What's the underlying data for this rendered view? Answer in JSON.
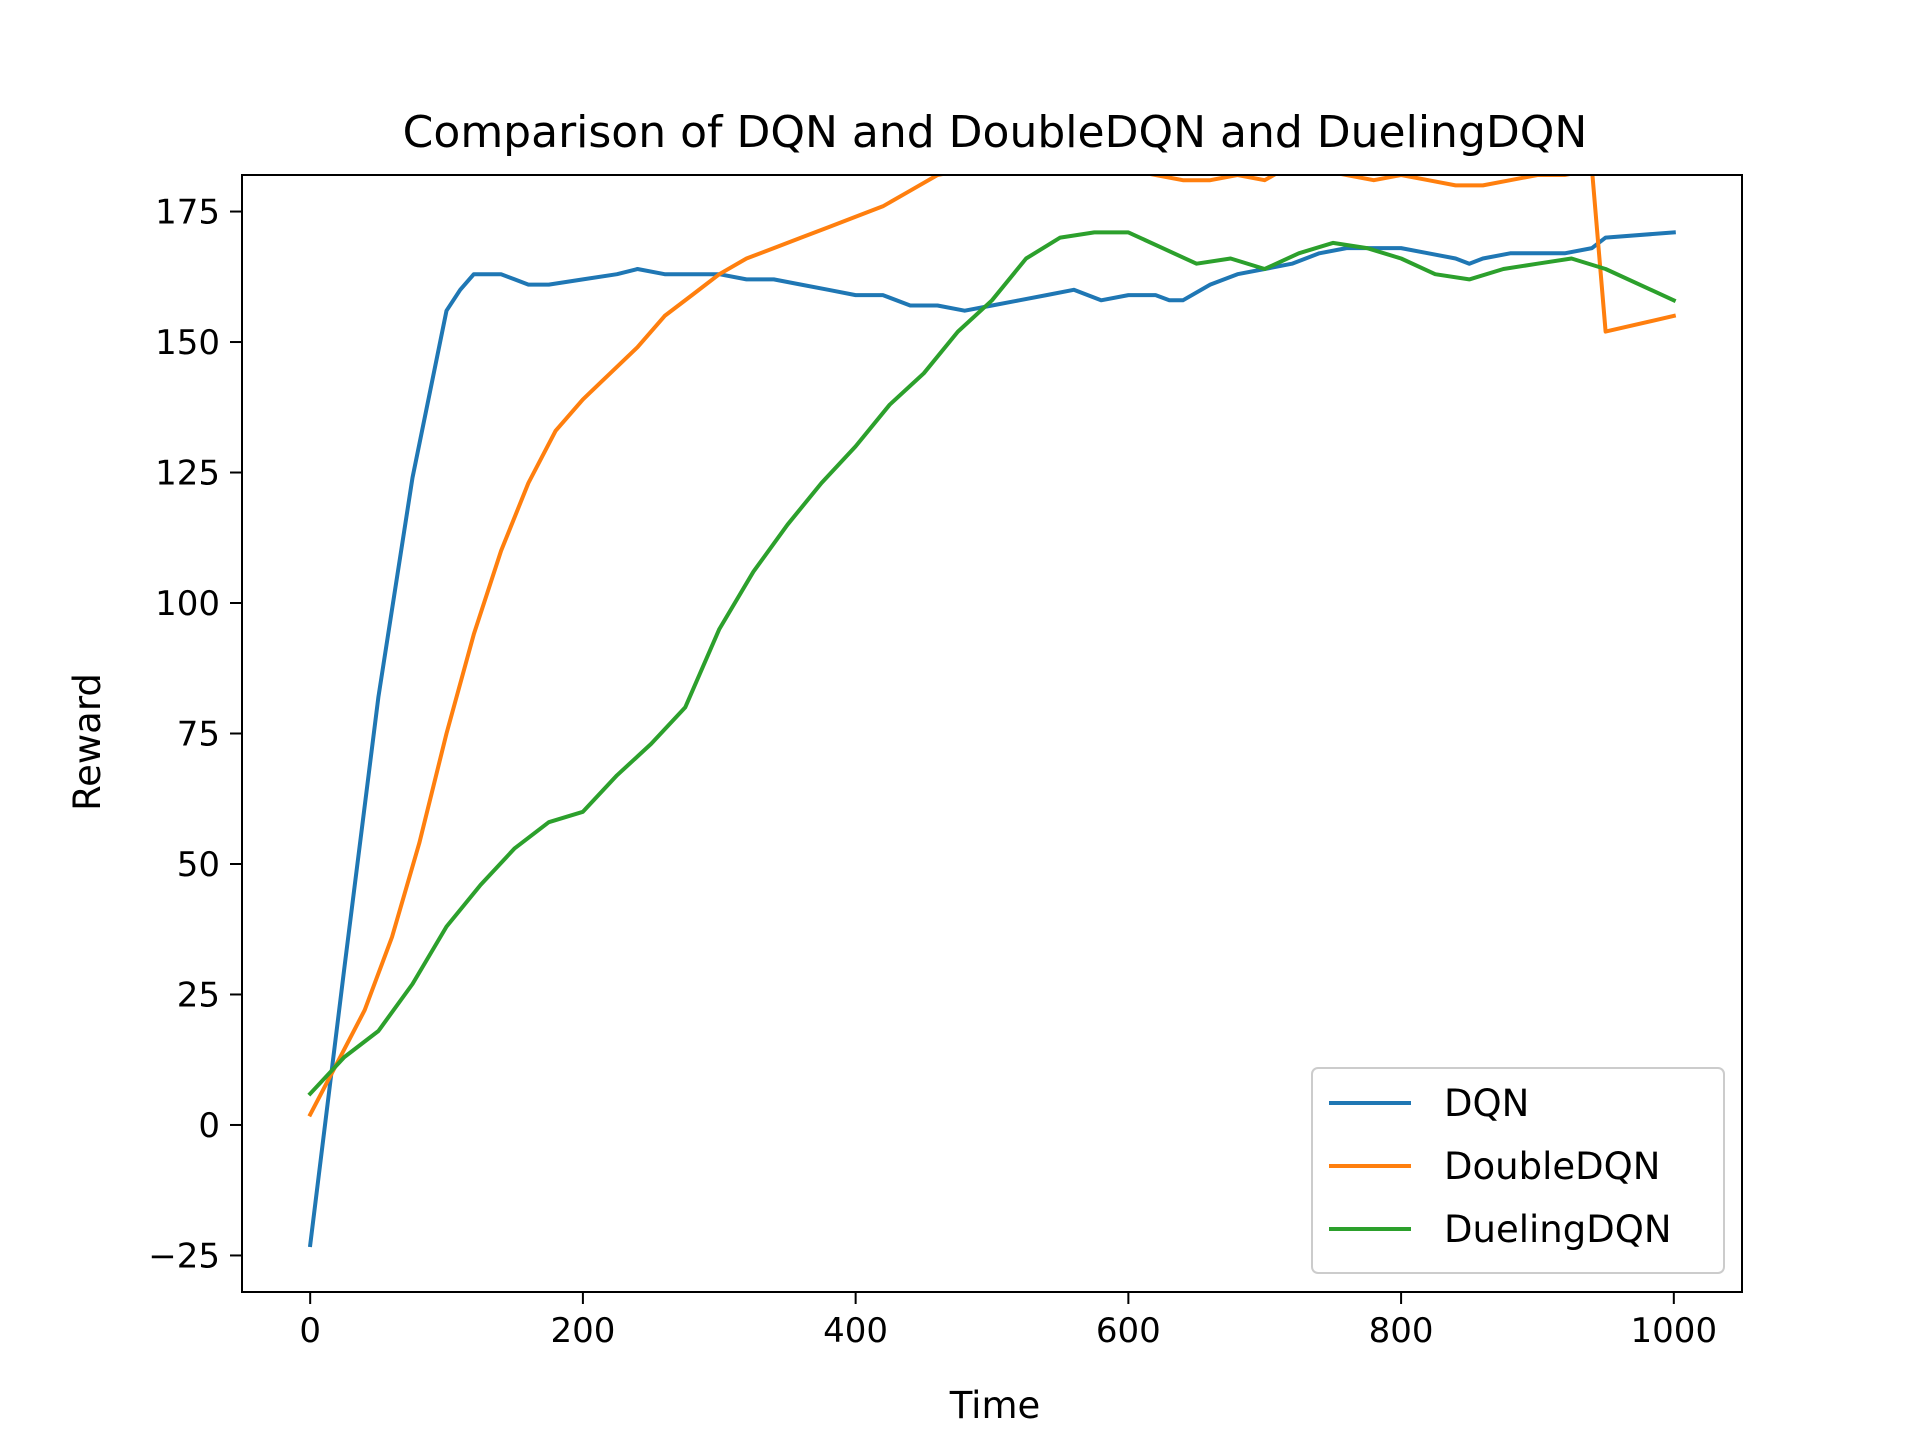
{
  "chart_data": {
    "type": "line",
    "title": "Comparison of DQN and DoubleDQN and DuelingDQN",
    "xlabel": "Time",
    "ylabel": "Reward",
    "xlim": [
      -50,
      1050
    ],
    "ylim": [
      -32,
      182
    ],
    "xticks": [
      0,
      200,
      400,
      600,
      800,
      1000
    ],
    "yticks": [
      -25,
      0,
      25,
      50,
      75,
      100,
      125,
      150,
      175
    ],
    "xtick_labels": [
      "0",
      "200",
      "400",
      "600",
      "800",
      "1000"
    ],
    "ytick_labels": [
      "−25",
      "0",
      "25",
      "50",
      "75",
      "100",
      "125",
      "150",
      "175"
    ],
    "grid": false,
    "legend_position": "lower right",
    "series": [
      {
        "name": "DQN",
        "color": "#1f77b4",
        "x": [
          0,
          25,
          50,
          75,
          100,
          110,
          120,
          130,
          140,
          150,
          160,
          175,
          200,
          225,
          240,
          260,
          280,
          300,
          320,
          340,
          360,
          380,
          400,
          420,
          440,
          460,
          480,
          500,
          520,
          540,
          560,
          580,
          600,
          620,
          630,
          640,
          660,
          680,
          700,
          720,
          740,
          760,
          780,
          800,
          820,
          840,
          850,
          860,
          880,
          900,
          920,
          940,
          950,
          1000
        ],
        "y": [
          -23,
          30,
          82,
          124,
          156,
          160,
          163,
          163,
          163,
          162,
          161,
          161,
          162,
          163,
          164,
          163,
          163,
          163,
          162,
          162,
          161,
          160,
          159,
          159,
          157,
          157,
          156,
          157,
          158,
          159,
          160,
          158,
          159,
          159,
          158,
          158,
          161,
          163,
          164,
          165,
          167,
          168,
          168,
          168,
          167,
          166,
          165,
          166,
          167,
          167,
          167,
          168,
          170,
          171
        ]
      },
      {
        "name": "DoubleDQN",
        "color": "#ff7f0e",
        "x": [
          0,
          20,
          40,
          60,
          80,
          100,
          120,
          140,
          160,
          180,
          200,
          220,
          240,
          260,
          280,
          300,
          320,
          340,
          360,
          380,
          400,
          420,
          440,
          460,
          480,
          500,
          520,
          540,
          560,
          580,
          600,
          620,
          640,
          660,
          680,
          700,
          720,
          740,
          760,
          780,
          800,
          820,
          840,
          860,
          880,
          900,
          920,
          940,
          950,
          1000
        ],
        "y": [
          2,
          12,
          22,
          36,
          54,
          75,
          94,
          110,
          123,
          133,
          139,
          144,
          149,
          155,
          159,
          163,
          166,
          168,
          170,
          172,
          174,
          176,
          179,
          182,
          183,
          185,
          187,
          190,
          189,
          186,
          183,
          182,
          181,
          181,
          182,
          181,
          184,
          183,
          182,
          181,
          182,
          181,
          180,
          180,
          181,
          182,
          182,
          183,
          152,
          155
        ]
      },
      {
        "name": "DuelingDQN",
        "color": "#2ca02c",
        "x": [
          0,
          25,
          50,
          75,
          100,
          125,
          150,
          175,
          200,
          225,
          250,
          275,
          300,
          325,
          350,
          375,
          400,
          425,
          450,
          475,
          500,
          525,
          550,
          575,
          600,
          625,
          650,
          675,
          700,
          725,
          750,
          775,
          800,
          825,
          850,
          875,
          900,
          925,
          950,
          1000
        ],
        "y": [
          6,
          13,
          18,
          27,
          38,
          46,
          53,
          58,
          60,
          67,
          73,
          80,
          95,
          106,
          115,
          123,
          130,
          138,
          144,
          152,
          158,
          166,
          170,
          171,
          171,
          168,
          165,
          166,
          164,
          167,
          169,
          168,
          166,
          163,
          162,
          164,
          165,
          166,
          164,
          158
        ]
      }
    ]
  }
}
